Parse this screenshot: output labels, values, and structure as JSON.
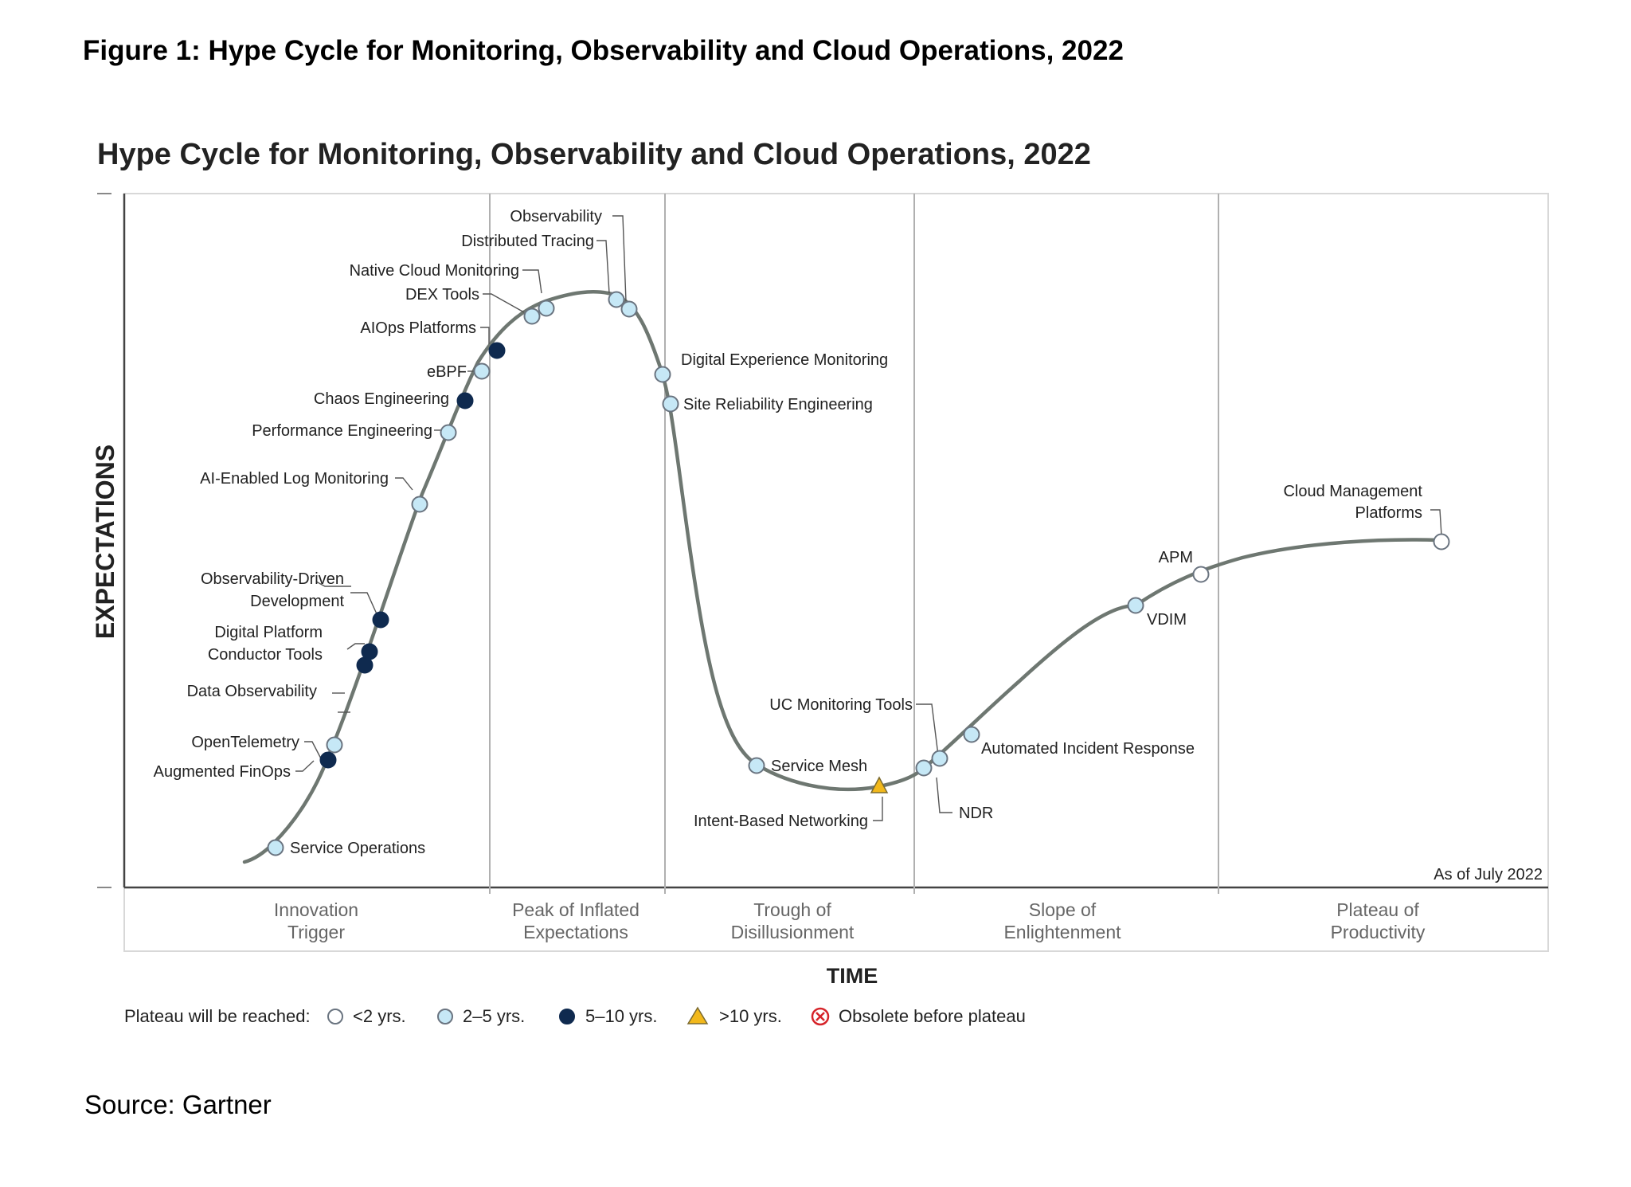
{
  "figure_caption": "Figure 1: Hype Cycle for Monitoring, Observability and Cloud Operations, 2022",
  "chart_title": "Hype Cycle for Monitoring, Observability and Cloud Operations, 2022",
  "y_axis_label": "EXPECTATIONS",
  "x_axis_label": "TIME",
  "as_of": "As of July 2022",
  "source": "Source: Gartner",
  "phases": [
    {
      "id": "innovation",
      "line1": "Innovation",
      "line2": "Trigger"
    },
    {
      "id": "peak",
      "line1": "Peak of Inflated",
      "line2": "Expectations"
    },
    {
      "id": "trough",
      "line1": "Trough of",
      "line2": "Disillusionment"
    },
    {
      "id": "slope",
      "line1": "Slope of",
      "line2": "Enlightenment"
    },
    {
      "id": "plateau",
      "line1": "Plateau of",
      "line2": "Productivity"
    }
  ],
  "legend": {
    "title": "Plateau will be reached:",
    "items": [
      {
        "key": "lt2",
        "label": "<2 yrs."
      },
      {
        "key": "2to5",
        "label": "2–5 yrs."
      },
      {
        "key": "5to10",
        "label": "5–10 yrs."
      },
      {
        "key": "gt10",
        "label": ">10 yrs."
      },
      {
        "key": "obsolete",
        "label": "Obsolete before plateau"
      }
    ]
  },
  "colors": {
    "curve": "#6e7771",
    "lt2": "#ffffff",
    "2to5": "#c6e8f6",
    "5to10": "#0f2a4f",
    "gt10": "#f2b81b",
    "obsolete": "#d6242a",
    "marker_stroke": "#6a7480"
  },
  "technologies": [
    {
      "name": "Service Operations",
      "plateau": "2to5"
    },
    {
      "name": "Augmented FinOps",
      "plateau": "5to10"
    },
    {
      "name": "OpenTelemetry",
      "plateau": "2to5"
    },
    {
      "name": "Data Observability",
      "plateau": "5to10"
    },
    {
      "name": "Digital Platform Conductor Tools",
      "plateau": "5to10"
    },
    {
      "name": "Observability-Driven Development",
      "plateau": "5to10"
    },
    {
      "name": "AI-Enabled Log Monitoring",
      "plateau": "2to5"
    },
    {
      "name": "Performance Engineering",
      "plateau": "2to5"
    },
    {
      "name": "Chaos Engineering",
      "plateau": "5to10"
    },
    {
      "name": "eBPF",
      "plateau": "2to5"
    },
    {
      "name": "AIOps Platforms",
      "plateau": "5to10"
    },
    {
      "name": "DEX Tools",
      "plateau": "2to5"
    },
    {
      "name": "Native Cloud Monitoring",
      "plateau": "2to5"
    },
    {
      "name": "Distributed Tracing",
      "plateau": "2to5"
    },
    {
      "name": "Observability",
      "plateau": "2to5"
    },
    {
      "name": "Digital Experience Monitoring",
      "plateau": "2to5"
    },
    {
      "name": "Site Reliability Engineering",
      "plateau": "2to5"
    },
    {
      "name": "Service Mesh",
      "plateau": "2to5"
    },
    {
      "name": "Intent-Based Networking",
      "plateau": "gt10"
    },
    {
      "name": "NDR",
      "plateau": "2to5"
    },
    {
      "name": "UC Monitoring Tools",
      "plateau": "2to5"
    },
    {
      "name": "Automated Incident Response",
      "plateau": "2to5"
    },
    {
      "name": "VDIM",
      "plateau": "2to5"
    },
    {
      "name": "APM",
      "plateau": "lt2"
    },
    {
      "name": "Cloud Management Platforms",
      "plateau": "lt2"
    }
  ]
}
